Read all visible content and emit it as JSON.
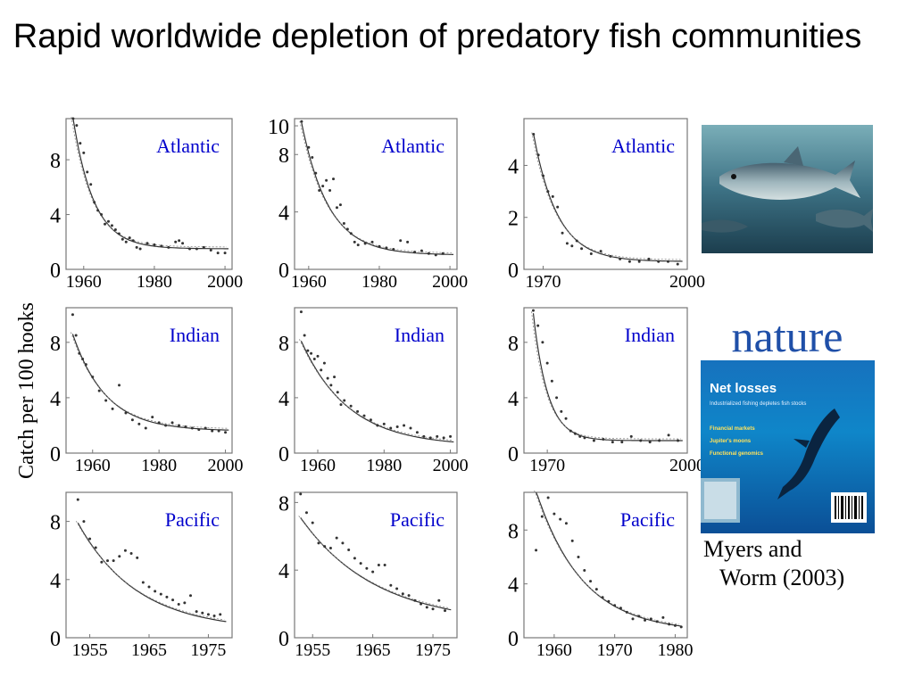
{
  "title": "Rapid worldwide depletion of predatory fish communities",
  "ylabel": "Catch per 100 hooks",
  "citation": {
    "line1": "Myers and",
    "line2": "Worm (2003)"
  },
  "cover": {
    "masthead": "nature",
    "headline": "Net losses",
    "subhead": "Industrialized fishing depletes fish stocks",
    "items": [
      "Financial markets",
      "Jupiter's moons",
      "Functional genomics"
    ]
  },
  "colors": {
    "series_name": "#0000cc",
    "points": "#333333",
    "fit": "#333333",
    "frame": "#777777"
  },
  "chart_data": [
    {
      "type": "scatter",
      "series_name": "Atlantic",
      "xlim": [
        1955,
        2002
      ],
      "ylim": [
        0,
        11
      ],
      "xticks": [
        1960,
        1980,
        2000
      ],
      "yticks": [
        0,
        4,
        8
      ],
      "points": [
        [
          1957,
          11
        ],
        [
          1958,
          10.5
        ],
        [
          1959,
          9.2
        ],
        [
          1960,
          8.5
        ],
        [
          1961,
          7.1
        ],
        [
          1962,
          6.2
        ],
        [
          1963,
          4.9
        ],
        [
          1964,
          4.3
        ],
        [
          1965,
          4
        ],
        [
          1966,
          3.3
        ],
        [
          1967,
          3.5
        ],
        [
          1968,
          3.2
        ],
        [
          1969,
          2.9
        ],
        [
          1970,
          2.6
        ],
        [
          1971,
          2.2
        ],
        [
          1972,
          2
        ],
        [
          1973,
          2.3
        ],
        [
          1974,
          2.1
        ],
        [
          1975,
          1.6
        ],
        [
          1976,
          1.5
        ],
        [
          1978,
          1.9
        ],
        [
          1980,
          1.8
        ],
        [
          1982,
          1.7
        ],
        [
          1984,
          1.6
        ],
        [
          1986,
          2
        ],
        [
          1987,
          2.1
        ],
        [
          1988,
          1.9
        ],
        [
          1990,
          1.5
        ],
        [
          1992,
          1.5
        ],
        [
          1994,
          1.6
        ],
        [
          1996,
          1.4
        ],
        [
          1998,
          1.2
        ],
        [
          2000,
          1.2
        ]
      ],
      "fit": {
        "a": 9.5,
        "k": 0.17,
        "c": 1.5,
        "x0": 1957
      }
    },
    {
      "type": "scatter",
      "series_name": "Atlantic",
      "xlim": [
        1956,
        2002
      ],
      "ylim": [
        0,
        10.5
      ],
      "xticks": [
        1960,
        1980,
        2000
      ],
      "yticks": [
        0,
        4,
        8,
        10
      ],
      "points": [
        [
          1958,
          10.3
        ],
        [
          1960,
          8.5
        ],
        [
          1961,
          7.8
        ],
        [
          1962,
          6.7
        ],
        [
          1963,
          5.5
        ],
        [
          1964,
          5.8
        ],
        [
          1965,
          6.2
        ],
        [
          1966,
          5.5
        ],
        [
          1967,
          6.3
        ],
        [
          1968,
          4.3
        ],
        [
          1969,
          4.5
        ],
        [
          1970,
          3.2
        ],
        [
          1971,
          2.8
        ],
        [
          1972,
          2.5
        ],
        [
          1973,
          1.9
        ],
        [
          1974,
          1.7
        ],
        [
          1976,
          1.8
        ],
        [
          1978,
          1.9
        ],
        [
          1980,
          1.6
        ],
        [
          1982,
          1.5
        ],
        [
          1984,
          1.4
        ],
        [
          1986,
          2
        ],
        [
          1988,
          1.9
        ],
        [
          1990,
          1.2
        ],
        [
          1992,
          1.3
        ],
        [
          1994,
          1.1
        ],
        [
          1996,
          1
        ],
        [
          1998,
          1.1
        ]
      ],
      "fit": {
        "a": 9.2,
        "k": 0.13,
        "c": 1,
        "x0": 1958
      }
    },
    {
      "type": "scatter",
      "series_name": "Atlantic",
      "xlim": [
        1966,
        2000
      ],
      "ylim": [
        0,
        5.8
      ],
      "xticks": [
        1970,
        2000
      ],
      "yticks": [
        0,
        2,
        4
      ],
      "points": [
        [
          1968,
          5.2
        ],
        [
          1969,
          4.4
        ],
        [
          1970,
          3.6
        ],
        [
          1971,
          3
        ],
        [
          1972,
          2.8
        ],
        [
          1973,
          2.4
        ],
        [
          1974,
          1.4
        ],
        [
          1975,
          1
        ],
        [
          1976,
          0.9
        ],
        [
          1977,
          1.1
        ],
        [
          1978,
          0.8
        ],
        [
          1980,
          0.6
        ],
        [
          1982,
          0.7
        ],
        [
          1984,
          0.5
        ],
        [
          1986,
          0.4
        ],
        [
          1988,
          0.3
        ],
        [
          1990,
          0.3
        ],
        [
          1992,
          0.4
        ],
        [
          1994,
          0.3
        ],
        [
          1996,
          0.3
        ],
        [
          1998,
          0.2
        ]
      ],
      "fit": {
        "a": 4.9,
        "k": 0.2,
        "c": 0.3,
        "x0": 1968
      }
    },
    {
      "type": "scatter",
      "series_name": "Indian",
      "xlim": [
        1952,
        2002
      ],
      "ylim": [
        0,
        10.5
      ],
      "xticks": [
        1960,
        1980,
        2000
      ],
      "yticks": [
        0,
        4,
        8
      ],
      "points": [
        [
          1954,
          10
        ],
        [
          1955,
          8.5
        ],
        [
          1956,
          7.2
        ],
        [
          1957,
          6.8
        ],
        [
          1958,
          6.4
        ],
        [
          1960,
          5.5
        ],
        [
          1962,
          4.5
        ],
        [
          1964,
          3.8
        ],
        [
          1966,
          3.2
        ],
        [
          1968,
          4.9
        ],
        [
          1970,
          2.9
        ],
        [
          1972,
          2.4
        ],
        [
          1974,
          2.1
        ],
        [
          1976,
          1.8
        ],
        [
          1978,
          2.6
        ],
        [
          1980,
          2.2
        ],
        [
          1982,
          2
        ],
        [
          1984,
          2.2
        ],
        [
          1986,
          2
        ],
        [
          1988,
          1.9
        ],
        [
          1990,
          1.8
        ],
        [
          1992,
          1.7
        ],
        [
          1994,
          1.8
        ],
        [
          1996,
          1.6
        ],
        [
          1998,
          1.6
        ],
        [
          2000,
          1.5
        ]
      ],
      "fit": {
        "a": 7,
        "k": 0.1,
        "c": 1.6,
        "x0": 1954
      }
    },
    {
      "type": "scatter",
      "series_name": "Indian",
      "xlim": [
        1953,
        2002
      ],
      "ylim": [
        0,
        10.5
      ],
      "xticks": [
        1960,
        1980,
        2000
      ],
      "yticks": [
        0,
        4,
        8
      ],
      "points": [
        [
          1955,
          10.2
        ],
        [
          1956,
          8.5
        ],
        [
          1957,
          7.4
        ],
        [
          1958,
          7.2
        ],
        [
          1959,
          6.8
        ],
        [
          1960,
          7
        ],
        [
          1961,
          6
        ],
        [
          1962,
          6.5
        ],
        [
          1963,
          5.4
        ],
        [
          1964,
          4.9
        ],
        [
          1965,
          5.5
        ],
        [
          1966,
          4.4
        ],
        [
          1967,
          3.5
        ],
        [
          1968,
          3.8
        ],
        [
          1970,
          3.4
        ],
        [
          1972,
          3
        ],
        [
          1974,
          2.7
        ],
        [
          1976,
          2.4
        ],
        [
          1978,
          2
        ],
        [
          1980,
          2.1
        ],
        [
          1982,
          1.8
        ],
        [
          1984,
          1.9
        ],
        [
          1986,
          2
        ],
        [
          1988,
          1.8
        ],
        [
          1990,
          1.5
        ],
        [
          1992,
          1.2
        ],
        [
          1994,
          1.1
        ],
        [
          1996,
          1.2
        ],
        [
          1998,
          1.1
        ],
        [
          2000,
          1.2
        ]
      ],
      "fit": {
        "a": 7.6,
        "k": 0.07,
        "c": 0.5,
        "x0": 1955
      }
    },
    {
      "type": "scatter",
      "series_name": "Indian",
      "xlim": [
        1965,
        2000
      ],
      "ylim": [
        0,
        10.5
      ],
      "xticks": [
        1970,
        2000
      ],
      "yticks": [
        0,
        4,
        8
      ],
      "points": [
        [
          1967,
          10.3
        ],
        [
          1968,
          9.2
        ],
        [
          1969,
          8
        ],
        [
          1970,
          6.5
        ],
        [
          1971,
          5.2
        ],
        [
          1972,
          4
        ],
        [
          1973,
          3
        ],
        [
          1974,
          2.5
        ],
        [
          1975,
          1.6
        ],
        [
          1976,
          1.4
        ],
        [
          1977,
          1.2
        ],
        [
          1978,
          1.1
        ],
        [
          1980,
          0.9
        ],
        [
          1982,
          1
        ],
        [
          1984,
          0.8
        ],
        [
          1986,
          0.8
        ],
        [
          1988,
          1.2
        ],
        [
          1990,
          0.9
        ],
        [
          1992,
          0.8
        ],
        [
          1994,
          0.9
        ],
        [
          1996,
          1.3
        ],
        [
          1998,
          0.9
        ]
      ],
      "fit": {
        "a": 9.2,
        "k": 0.32,
        "c": 0.9,
        "x0": 1967
      }
    },
    {
      "type": "scatter",
      "series_name": "Pacific",
      "xlim": [
        1951,
        1979
      ],
      "ylim": [
        0,
        10
      ],
      "xticks": [
        1955,
        1965,
        1975
      ],
      "yticks": [
        0,
        4,
        8
      ],
      "points": [
        [
          1953,
          9.5
        ],
        [
          1954,
          8
        ],
        [
          1955,
          6.8
        ],
        [
          1956,
          6.2
        ],
        [
          1957,
          5.2
        ],
        [
          1958,
          5.3
        ],
        [
          1959,
          5.3
        ],
        [
          1960,
          5.6
        ],
        [
          1961,
          6
        ],
        [
          1962,
          5.8
        ],
        [
          1963,
          5.5
        ],
        [
          1964,
          3.8
        ],
        [
          1965,
          3.5
        ],
        [
          1966,
          3.2
        ],
        [
          1967,
          3
        ],
        [
          1968,
          2.8
        ],
        [
          1969,
          2.6
        ],
        [
          1970,
          2.3
        ],
        [
          1971,
          2.4
        ],
        [
          1972,
          2.9
        ],
        [
          1973,
          1.8
        ],
        [
          1974,
          1.7
        ],
        [
          1975,
          1.6
        ],
        [
          1976,
          1.5
        ],
        [
          1977,
          1.6
        ]
      ],
      "fit": {
        "a": 7.4,
        "k": 0.1,
        "c": 0.5,
        "x0": 1953
      }
    },
    {
      "type": "scatter",
      "series_name": "Pacific",
      "xlim": [
        1952,
        1979
      ],
      "ylim": [
        0,
        8.6
      ],
      "xticks": [
        1955,
        1965,
        1975
      ],
      "yticks": [
        0,
        4,
        8
      ],
      "points": [
        [
          1953,
          8.5
        ],
        [
          1954,
          7.4
        ],
        [
          1955,
          6.8
        ],
        [
          1956,
          5.6
        ],
        [
          1957,
          5.4
        ],
        [
          1958,
          5.3
        ],
        [
          1959,
          5.9
        ],
        [
          1960,
          5.6
        ],
        [
          1961,
          5.2
        ],
        [
          1962,
          4.7
        ],
        [
          1963,
          4.4
        ],
        [
          1964,
          4.1
        ],
        [
          1965,
          3.9
        ],
        [
          1966,
          4.3
        ],
        [
          1967,
          4.3
        ],
        [
          1968,
          3.1
        ],
        [
          1969,
          2.9
        ],
        [
          1970,
          2.6
        ],
        [
          1971,
          2.5
        ],
        [
          1972,
          2.2
        ],
        [
          1973,
          2
        ],
        [
          1974,
          1.8
        ],
        [
          1975,
          1.7
        ],
        [
          1976,
          2.2
        ],
        [
          1977,
          1.6
        ]
      ],
      "fit": {
        "a": 6.3,
        "k": 0.08,
        "c": 0.8,
        "x0": 1953
      }
    },
    {
      "type": "scatter",
      "series_name": "Pacific",
      "xlim": [
        1955,
        1982
      ],
      "ylim": [
        0,
        10.8
      ],
      "xticks": [
        1960,
        1970,
        1980
      ],
      "yticks": [
        0,
        4,
        8
      ],
      "points": [
        [
          1957,
          6.5
        ],
        [
          1958,
          9
        ],
        [
          1959,
          10.4
        ],
        [
          1960,
          9.2
        ],
        [
          1961,
          8.8
        ],
        [
          1962,
          8.5
        ],
        [
          1963,
          7.2
        ],
        [
          1964,
          6
        ],
        [
          1965,
          5
        ],
        [
          1966,
          4.2
        ],
        [
          1967,
          3.6
        ],
        [
          1968,
          3
        ],
        [
          1969,
          2.7
        ],
        [
          1970,
          2.4
        ],
        [
          1971,
          2.2
        ],
        [
          1972,
          1.9
        ],
        [
          1973,
          1.4
        ],
        [
          1974,
          1.6
        ],
        [
          1975,
          1.3
        ],
        [
          1976,
          1.4
        ],
        [
          1977,
          1.2
        ],
        [
          1978,
          1.5
        ],
        [
          1979,
          1
        ],
        [
          1980,
          0.9
        ],
        [
          1981,
          0.8
        ]
      ],
      "fit": {
        "a": 10.5,
        "k": 0.13,
        "c": 0.4,
        "x0": 1957
      }
    }
  ]
}
